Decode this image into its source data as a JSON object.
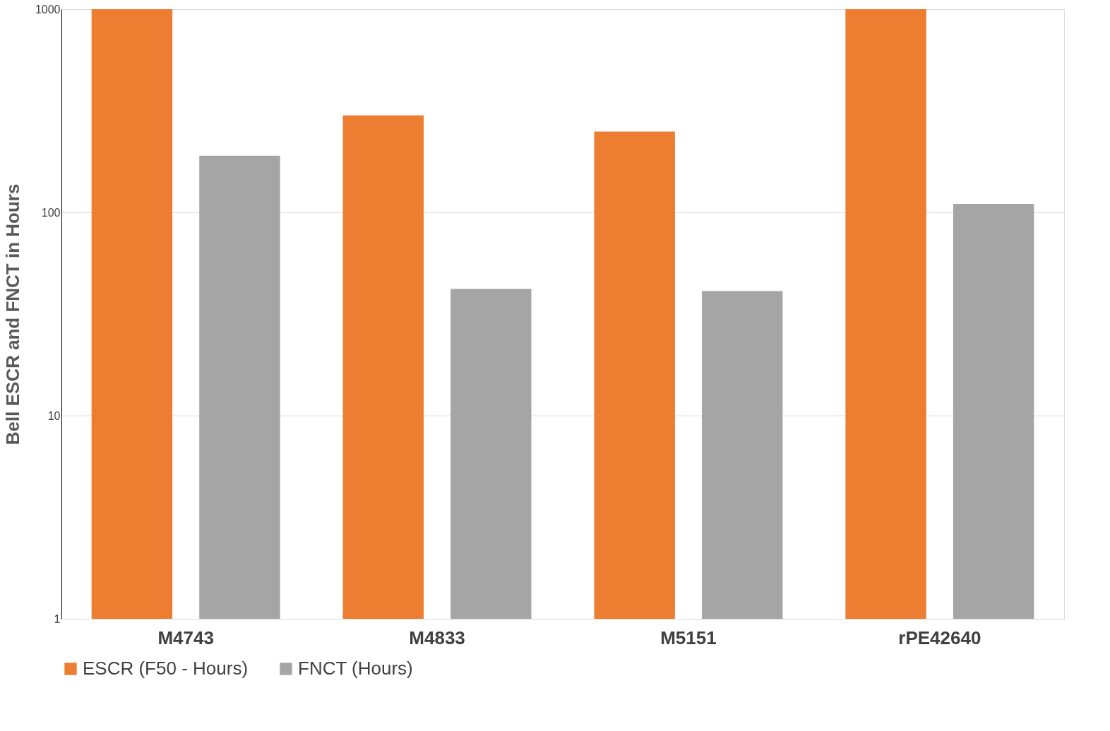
{
  "chart_data": {
    "type": "bar",
    "ylabel": "Bell ESCR and FNCT in Hours",
    "categories": [
      "M4743",
      "M4833",
      "M5151",
      "rPE42640"
    ],
    "series": [
      {
        "name": "ESCR (F50 - Hours)",
        "color": "#ed7d31",
        "values": [
          1000,
          300,
          250,
          1000
        ]
      },
      {
        "name": "FNCT (Hours)",
        "color": "#a5a5a5",
        "values": [
          190,
          42,
          41,
          110
        ]
      }
    ],
    "log": true,
    "ylim": [
      1,
      1000
    ],
    "yticks": [
      1,
      10,
      100,
      1000
    ],
    "grid": "y",
    "legend": "bottom"
  }
}
